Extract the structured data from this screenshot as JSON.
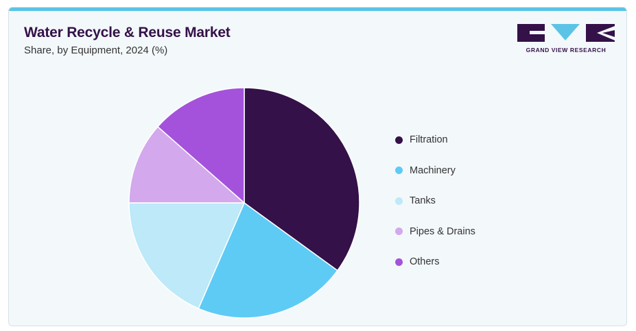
{
  "header": {
    "title": "Water Recycle & Reuse Market",
    "subtitle": "Share, by Equipment, 2024 (%)"
  },
  "logo": {
    "text": "GRAND VIEW RESEARCH",
    "color": "#341148",
    "accent": "#5bc4e6"
  },
  "colors": {
    "card_background": "#f3f8fb",
    "top_bar": "#5bc4e6"
  },
  "chart_data": {
    "type": "pie",
    "title": "Water Recycle & Reuse Market",
    "subtitle": "Share, by Equipment, 2024 (%)",
    "categories": [
      "Filtration",
      "Machinery",
      "Tanks",
      "Pipes & Drains",
      "Others"
    ],
    "values": [
      35,
      21.5,
      18.5,
      11.5,
      13.5
    ],
    "colors": [
      "#341148",
      "#5ecbf5",
      "#bde9f8",
      "#d3a8ec",
      "#a452db"
    ],
    "start_angle_deg": 0,
    "direction": "clockwise",
    "legend_position": "right"
  }
}
